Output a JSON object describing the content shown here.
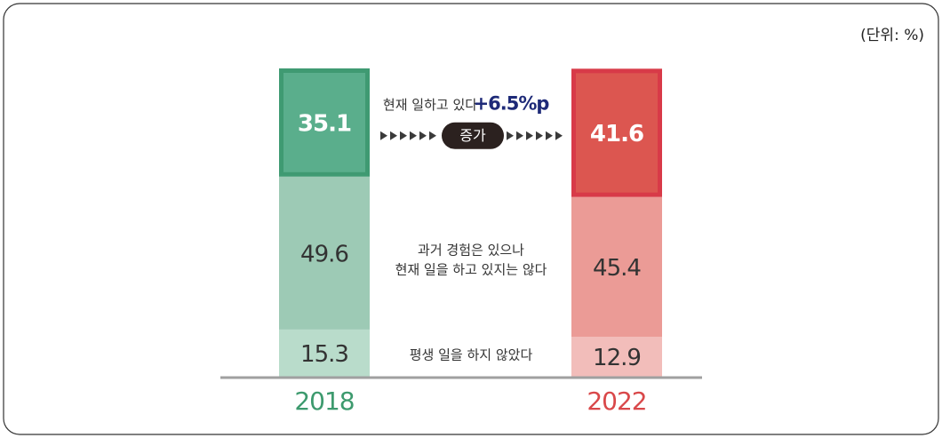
{
  "chart_data": {
    "type": "stacked_bar",
    "unit": "(단위: %)",
    "categories": [
      "2018",
      "2022"
    ],
    "category_colors": [
      "#3d9a6e",
      "#d9484a"
    ],
    "ylim": [
      0,
      100
    ],
    "series": [
      {
        "name": "현재 일하고 있다",
        "colors": [
          "#5aae8c",
          "#dc5650"
        ],
        "values": [
          35.1,
          41.6
        ]
      },
      {
        "name": "과거 경험은 있으나\n현재 일을 하고 있지는 않다",
        "colors": [
          "#9dcab5",
          "#eb9b96"
        ],
        "values": [
          49.6,
          45.4
        ]
      },
      {
        "name": "평생 일을 하지 않았다",
        "colors": [
          "#b9dccb",
          "#f2bdba"
        ],
        "values": [
          15.3,
          12.9
        ]
      }
    ],
    "annotation": {
      "change": "+6.5%p",
      "label": "증가"
    }
  }
}
